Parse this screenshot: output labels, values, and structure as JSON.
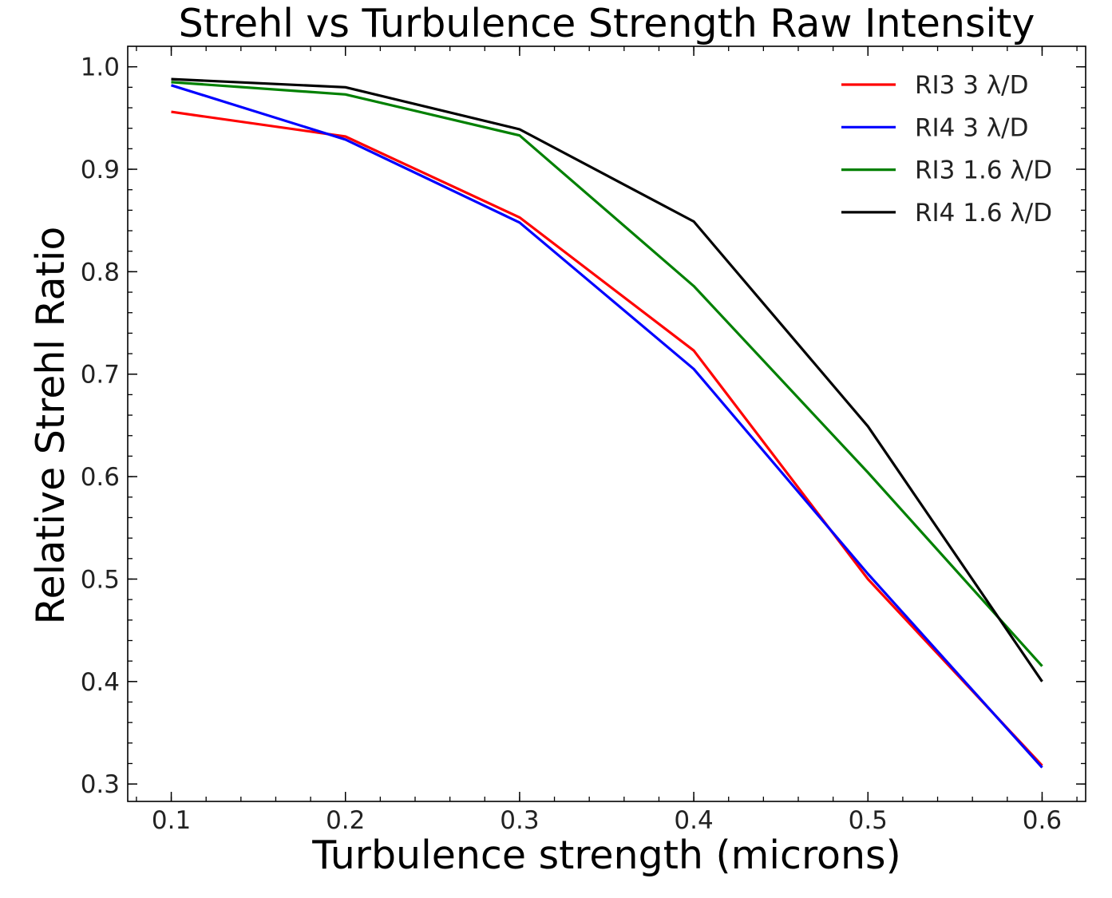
{
  "chart_data": {
    "type": "line",
    "title": "Strehl vs Turbulence Strength Raw Intensity",
    "xlabel": "Turbulence strength (microns)",
    "ylabel": "Relative Strehl Ratio",
    "xlim": [
      0.075,
      0.625
    ],
    "ylim": [
      0.283,
      1.02
    ],
    "x_ticks": [
      "0.1",
      "0.2",
      "0.3",
      "0.4",
      "0.5",
      "0.6"
    ],
    "y_ticks": [
      "0.3",
      "0.4",
      "0.5",
      "0.6",
      "0.7",
      "0.8",
      "0.9",
      "1.0"
    ],
    "x_minor_step": 0.02,
    "y_minor_step": 0.02,
    "grid": false,
    "legend_position": "top-right",
    "x": [
      0.1,
      0.2,
      0.3,
      0.4,
      0.5,
      0.6
    ],
    "series": [
      {
        "name": "RI3 3 λ/D",
        "color": "#ff0000",
        "values": [
          0.956,
          0.932,
          0.853,
          0.723,
          0.5,
          0.318
        ]
      },
      {
        "name": "RI4 3 λ/D",
        "color": "#0000ff",
        "values": [
          0.982,
          0.929,
          0.848,
          0.705,
          0.505,
          0.316
        ]
      },
      {
        "name": "RI3 1.6 λ/D",
        "color": "#008000",
        "values": [
          0.985,
          0.973,
          0.933,
          0.786,
          0.604,
          0.415
        ]
      },
      {
        "name": "RI4 1.6 λ/D",
        "color": "#000000",
        "values": [
          0.988,
          0.98,
          0.939,
          0.849,
          0.649,
          0.4
        ]
      }
    ]
  }
}
